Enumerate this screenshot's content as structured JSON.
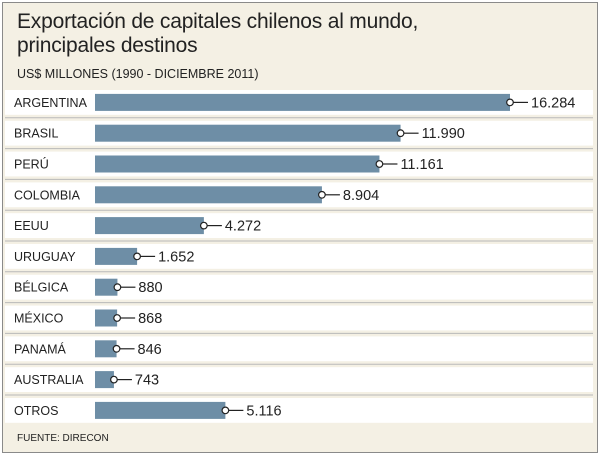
{
  "chart_data": {
    "type": "bar",
    "orientation": "horizontal",
    "title": "Exportación de capitales chilenos al mundo, principales destinos",
    "subtitle": "US$ MILLONES (1990 - DICIEMBRE 2011)",
    "source": "FUENTE: DIRECON",
    "categories": [
      "ARGENTINA",
      "BRASIL",
      "PERÚ",
      "COLOMBIA",
      "EEUU",
      "URUGUAY",
      "BÉLGICA",
      "MÉXICO",
      "PANAMÁ",
      "AUSTRALIA",
      "OTROS"
    ],
    "values": [
      16284,
      11990,
      11161,
      8904,
      4272,
      1652,
      880,
      868,
      846,
      743,
      5116
    ],
    "value_labels": [
      "16.284",
      "11.990",
      "11.161",
      "8.904",
      "4.272",
      "1.652",
      "880",
      "868",
      "846",
      "743",
      "5.116"
    ],
    "xlim": [
      0,
      16284
    ],
    "grid": false,
    "legend": "none",
    "colors": {
      "bar": "#6e8ea6",
      "background": "#f4f0e4",
      "row_band": "#ffffff",
      "separator": "#b9b9b9",
      "leader": "#222222"
    }
  }
}
